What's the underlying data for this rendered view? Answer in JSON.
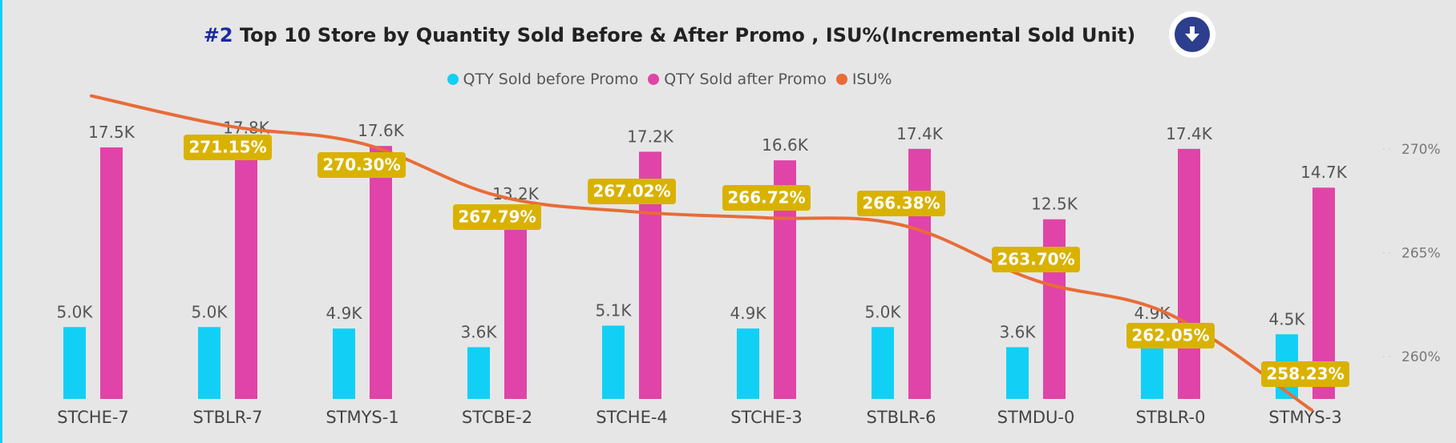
{
  "header": {
    "title_number": "#2",
    "title_text": " Top 10 Store by Quantity Sold Before & After Promo , ISU%(Incremental Sold Unit)",
    "download_icon": "arrow-down-circle-icon"
  },
  "colors": {
    "before": "#12d0f5",
    "after": "#e044a8",
    "isu": "#e86c37",
    "label_bg": "#d9b200",
    "background": "#e6e6e6"
  },
  "chart_data": {
    "type": "bar",
    "categories": [
      "STCHE-7",
      "STBLR-7",
      "STMYS-1",
      "STCBE-2",
      "STCHE-4",
      "STCHE-3",
      "STBLR-6",
      "STMDU-0",
      "STBLR-0",
      "STMYS-3"
    ],
    "series": [
      {
        "name": "QTY Sold before Promo",
        "type": "bar",
        "axis": "left",
        "values": [
          5.0,
          5.0,
          4.9,
          3.6,
          5.1,
          4.9,
          5.0,
          3.6,
          4.9,
          4.5
        ],
        "labels": [
          "5.0K",
          "5.0K",
          "4.9K",
          "3.6K",
          "5.1K",
          "4.9K",
          "5.0K",
          "3.6K",
          "4.9K",
          "4.5K"
        ]
      },
      {
        "name": "QTY Sold after Promo",
        "type": "bar",
        "axis": "left",
        "values": [
          17.5,
          17.8,
          17.6,
          13.2,
          17.2,
          16.6,
          17.4,
          12.5,
          17.4,
          14.7
        ],
        "labels": [
          "17.5K",
          "17.8K",
          "17.6K",
          "13.2K",
          "17.2K",
          "16.6K",
          "17.4K",
          "12.5K",
          "17.4K",
          "14.7K"
        ]
      },
      {
        "name": "ISU%",
        "type": "line",
        "axis": "right",
        "values": [
          271.15,
          271.15,
          270.3,
          267.79,
          267.02,
          266.72,
          266.38,
          263.7,
          262.05,
          258.23
        ],
        "labels": [
          "",
          "271.15%",
          "270.30%",
          "267.79%",
          "267.02%",
          "266.72%",
          "266.38%",
          "263.70%",
          "262.05%",
          "258.23%"
        ]
      }
    ],
    "y_right_ticks": [
      "270%",
      "265%",
      "260%"
    ],
    "y_right_tick_values": [
      270,
      265,
      260
    ],
    "y_right_range": [
      258,
      272.6
    ],
    "y_left_range": [
      0,
      18
    ],
    "legend_position": "top-center",
    "grid": false
  }
}
